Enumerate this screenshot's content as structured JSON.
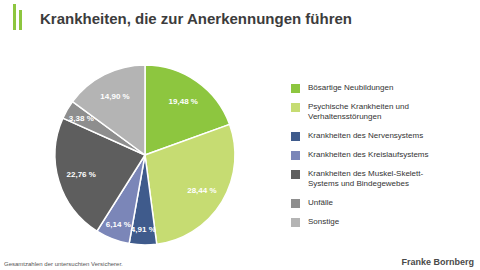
{
  "chart_data": {
    "type": "pie",
    "title": "Krankheiten, die zur Anerkennungen führen",
    "categories": [
      "Bösartige Neubildungen",
      "Psychische Krankheiten und Verhaltensstörungen",
      "Krankheiten des Nervensystems",
      "Krankheiten des Kreislaufsystems",
      "Krankheiten des Muskel-Skelett-Systems und Bindegewebes",
      "Unfälle",
      "Sonstige"
    ],
    "values": [
      19.48,
      28.44,
      4.91,
      6.14,
      22.76,
      3.38,
      14.9
    ],
    "value_labels": [
      "19,48 %",
      "28,44 %",
      "4,91 %",
      "6,14 %",
      "22,76 %",
      "3,38 %",
      "14,90 %"
    ],
    "colors": [
      "#8dc63f",
      "#c6dc72",
      "#3f5b8c",
      "#7b86b8",
      "#5e5e5e",
      "#8e8e8e",
      "#b4b4b4"
    ],
    "data_labels": true,
    "legend": "right",
    "annotations": [
      "Gesamtzahlen der untersuchten Versicherer.",
      "Franke Bornberg"
    ]
  }
}
